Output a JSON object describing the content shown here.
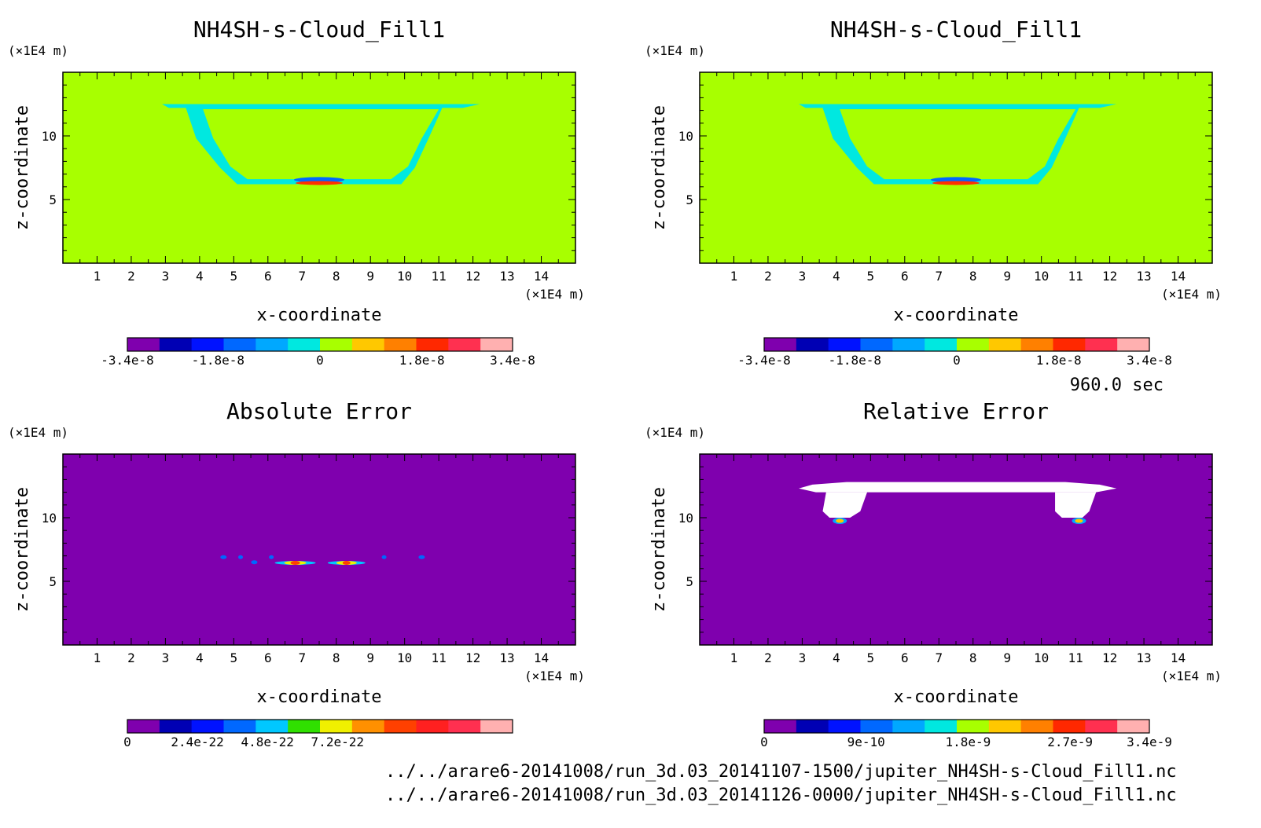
{
  "time_label": "960.0 sec",
  "file_paths": [
    "../../arare6-20141008/run_3d.03_20141107-1500/jupiter_NH4SH-s-Cloud_Fill1.nc",
    "../../arare6-20141008/run_3d.03_20141126-0000/jupiter_NH4SH-s-Cloud_Fill1.nc"
  ],
  "axes": {
    "xlabel": "x-coordinate",
    "ylabel": "z-coordinate",
    "x_unit": "(×1E4 m)",
    "z_unit": "(×1E4 m)",
    "x_ticks": [
      "1",
      "2",
      "3",
      "4",
      "5",
      "6",
      "7",
      "8",
      "9",
      "10",
      "11",
      "12",
      "13",
      "14"
    ],
    "z_ticks": [
      "5",
      "10"
    ],
    "xlim": [
      0,
      15
    ],
    "zlim": [
      0,
      15
    ]
  },
  "chart_data": [
    {
      "type": "heatmap",
      "title": "NH4SH-s-Cloud_Fill1",
      "background_color": "#a8ff00",
      "colorbar": {
        "colors": [
          "#7f00ae",
          "#0000b4",
          "#0012ff",
          "#0068ff",
          "#00a8ff",
          "#00e8e0",
          "#a8ff00",
          "#ffc800",
          "#ff8000",
          "#ff2800",
          "#ff3050",
          "#ffb0b0"
        ],
        "tick_labels": [
          "-3.4e-8",
          "-1.8e-8",
          "0",
          "1.8e-8",
          "3.4e-8"
        ],
        "tick_values": [
          -3.4e-08,
          -1.8e-08,
          0,
          1.8e-08,
          3.4e-08
        ]
      }
    },
    {
      "type": "heatmap",
      "title": "NH4SH-s-Cloud_Fill1",
      "background_color": "#a8ff00",
      "colorbar": {
        "colors": [
          "#7f00ae",
          "#0000b4",
          "#0012ff",
          "#0068ff",
          "#00a8ff",
          "#00e8e0",
          "#a8ff00",
          "#ffc800",
          "#ff8000",
          "#ff2800",
          "#ff3050",
          "#ffb0b0"
        ],
        "tick_labels": [
          "-3.4e-8",
          "-1.8e-8",
          "0",
          "1.8e-8",
          "3.4e-8"
        ],
        "tick_values": [
          -3.4e-08,
          -1.8e-08,
          0,
          1.8e-08,
          3.4e-08
        ]
      }
    },
    {
      "type": "heatmap",
      "title": "Absolute Error",
      "background_color": "#7f00ae",
      "colorbar": {
        "colors": [
          "#7f00ae",
          "#0000b4",
          "#0012ff",
          "#0068ff",
          "#00c8ff",
          "#30e000",
          "#f0f000",
          "#ff9000",
          "#ff4000",
          "#ff2020",
          "#ff3050",
          "#ffb0b0"
        ],
        "tick_labels": [
          "0",
          "2.4e-22",
          "4.8e-22",
          "7.2e-22"
        ],
        "tick_values": [
          0,
          2.4e-22,
          4.8e-22,
          7.2e-22
        ]
      }
    },
    {
      "type": "heatmap",
      "title": "Relative Error",
      "background_color": "#7f00ae",
      "colorbar": {
        "colors": [
          "#7f00ae",
          "#0000b4",
          "#0012ff",
          "#0068ff",
          "#00a8ff",
          "#00e8e0",
          "#a8ff00",
          "#ffc800",
          "#ff8000",
          "#ff2800",
          "#ff3050",
          "#ffb0b0"
        ],
        "tick_labels": [
          "0",
          "9e-10",
          "1.8e-9",
          "2.7e-9",
          "3.4e-9"
        ],
        "tick_values": [
          0,
          9e-10,
          1.8e-09,
          2.7e-09,
          3.4e-09
        ]
      }
    }
  ]
}
